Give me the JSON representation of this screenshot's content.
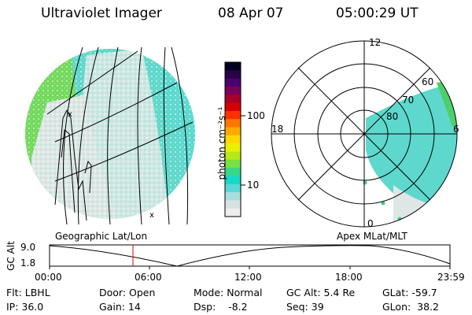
{
  "header": {
    "instrument": "Ultraviolet Imager",
    "date": "08 Apr 07",
    "time": "05:00:29 UT"
  },
  "left_panel": {
    "label": "Geographic Lat/Lon"
  },
  "right_panel": {
    "label": "Apex MLat/MLT",
    "mlt_labels": {
      "top": "12",
      "left": "18",
      "right": "6",
      "bottom": "0"
    },
    "lat_labels": [
      "60",
      "70",
      "80"
    ]
  },
  "colorbar": {
    "unit_label": "photon cm⁻²s⁻¹",
    "ticks": [
      "100",
      "10"
    ],
    "colors": [
      "#000022",
      "#2a0048",
      "#4b006e",
      "#7a0058",
      "#a80028",
      "#d40000",
      "#ff3000",
      "#ff7700",
      "#ffaa00",
      "#ffd800",
      "#eaf000",
      "#b8e818",
      "#78e040",
      "#38d888",
      "#18d8c8",
      "#5ad8d8",
      "#a8dede",
      "#d8e2e2",
      "#eeeeee"
    ]
  },
  "altitude_plot": {
    "ylabel": "GC Alt",
    "y_ticks": [
      "9.0",
      "1.8"
    ],
    "x_ticks": [
      "00:00",
      "06:00",
      "12:00",
      "18:00",
      "23:59"
    ],
    "current_time_hours": 5.0
  },
  "info": [
    [
      {
        "label": "Flt: LBHL"
      },
      {
        "label": "Door: Open"
      },
      {
        "label": "Mode: Normal"
      },
      {
        "label": "GC Alt: 5.4 Re"
      },
      {
        "label": "GLat: -59.7"
      }
    ],
    [
      {
        "label": "IP: 36.0"
      },
      {
        "label": "Gain: 14"
      },
      {
        "label": "Dsp:    -8.2"
      },
      {
        "label": "Seq: 39"
      },
      {
        "label": "GLon:  38.2"
      }
    ]
  ]
}
